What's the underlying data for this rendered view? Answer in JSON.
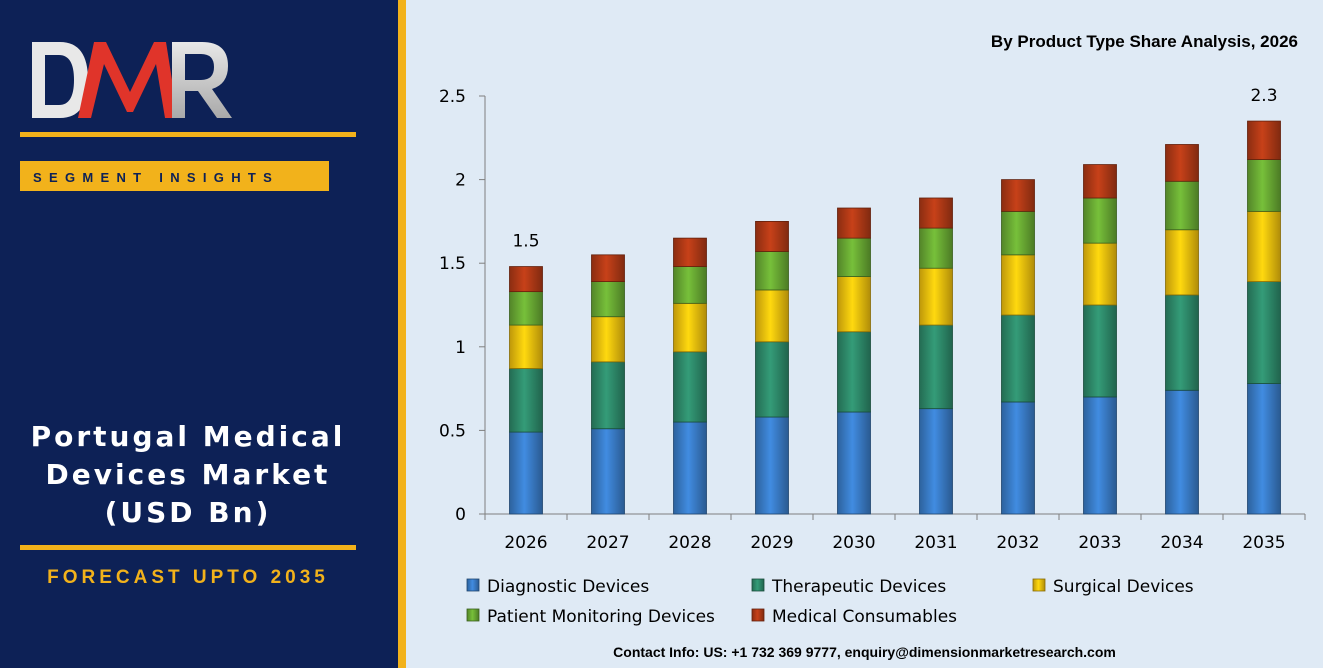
{
  "left_panel": {
    "logo_text": "DMR",
    "segment_label": "SEGMENT INSIGHTS",
    "market_title": "Portugal Medical Devices Market (USD Bn)",
    "forecast_label": "FORECAST UPTO 2035"
  },
  "footer": {
    "contact": "Contact Info: US: +1 732 369 9777, enquiry@dimensionmarketresearch.com"
  },
  "colors": {
    "left_bg": "#0d2156",
    "accent": "#f2b21b",
    "chart_bg": "#dfeaf5"
  },
  "chart_data": {
    "type": "bar",
    "stacked": true,
    "title": "By Product Type Share Analysis, 2026",
    "xlabel": "",
    "ylabel": "",
    "ylim": [
      0,
      2.5
    ],
    "yticks": [
      0,
      0.5,
      1,
      1.5,
      2,
      2.5
    ],
    "grid": false,
    "legend_position": "bottom",
    "categories": [
      "2026",
      "2027",
      "2028",
      "2029",
      "2030",
      "2031",
      "2032",
      "2033",
      "2034",
      "2035"
    ],
    "series": [
      {
        "name": "Diagnostic Devices",
        "color": "#3a7dc9",
        "values": [
          0.49,
          0.51,
          0.55,
          0.58,
          0.61,
          0.63,
          0.67,
          0.7,
          0.74,
          0.78
        ]
      },
      {
        "name": "Therapeutic Devices",
        "color": "#2e8b6b",
        "values": [
          0.38,
          0.4,
          0.42,
          0.45,
          0.48,
          0.5,
          0.52,
          0.55,
          0.57,
          0.61
        ]
      },
      {
        "name": "Surgical Devices",
        "color": "#f4c20d",
        "values": [
          0.26,
          0.27,
          0.29,
          0.31,
          0.33,
          0.34,
          0.36,
          0.37,
          0.39,
          0.42
        ]
      },
      {
        "name": "Patient Monitoring Devices",
        "color": "#6aab34",
        "values": [
          0.2,
          0.21,
          0.22,
          0.23,
          0.23,
          0.24,
          0.26,
          0.27,
          0.29,
          0.31
        ]
      },
      {
        "name": "Medical Consumables",
        "color": "#b23a16",
        "values": [
          0.15,
          0.16,
          0.17,
          0.18,
          0.18,
          0.18,
          0.19,
          0.2,
          0.22,
          0.23
        ]
      }
    ],
    "annotations": [
      {
        "category": "2026",
        "text": "1.5"
      },
      {
        "category": "2035",
        "text": "2.3"
      }
    ]
  }
}
